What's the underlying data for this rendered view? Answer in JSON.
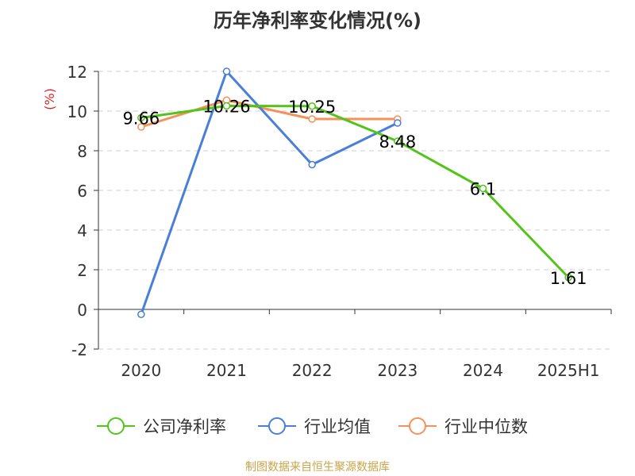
{
  "source": "制图数据来自恒生聚源数据库",
  "chart_data": {
    "type": "line",
    "title": "历年净利率变化情况(%)",
    "ylabel": "(%)",
    "xlabel": "",
    "categories": [
      "2020",
      "2021",
      "2022",
      "2023",
      "2024",
      "2025H1"
    ],
    "ylim": [
      -2,
      12
    ],
    "yticks": [
      -2,
      0,
      2,
      4,
      6,
      8,
      10,
      12
    ],
    "grid": true,
    "legend_position": "bottom",
    "series": [
      {
        "name": "公司净利率",
        "color": "#52c41a",
        "values": [
          9.66,
          10.26,
          10.25,
          8.48,
          6.1,
          1.61
        ],
        "labels": [
          "9.66",
          "10.26",
          "10.25",
          "8.48",
          "6.1",
          "1.61"
        ]
      },
      {
        "name": "行业均值",
        "color": "#4a7fd9",
        "values": [
          -0.25,
          12.0,
          7.3,
          9.4,
          null,
          null
        ]
      },
      {
        "name": "行业中位数",
        "color": "#f5915a",
        "values": [
          9.2,
          10.55,
          9.6,
          9.6,
          null,
          null
        ]
      }
    ]
  }
}
